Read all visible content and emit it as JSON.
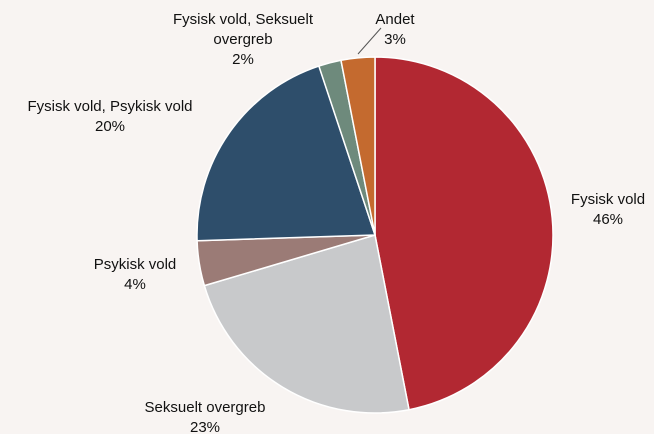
{
  "chart_data": {
    "type": "pie",
    "categories": [
      "Fysisk vold",
      "Seksuelt overgreb",
      "Psykisk vold",
      "Fysisk vold, Psykisk vold",
      "Fysisk vold, Seksuelt overgreb",
      "Andet"
    ],
    "values": [
      46,
      23,
      4,
      20,
      2,
      3
    ],
    "value_labels": [
      "46%",
      "23%",
      "4%",
      "20%",
      "2%",
      "3%"
    ],
    "colors": [
      "#b22832",
      "#c8c9cb",
      "#9b7b76",
      "#2e4e6b",
      "#6e8a7c",
      "#c46a2f"
    ]
  }
}
